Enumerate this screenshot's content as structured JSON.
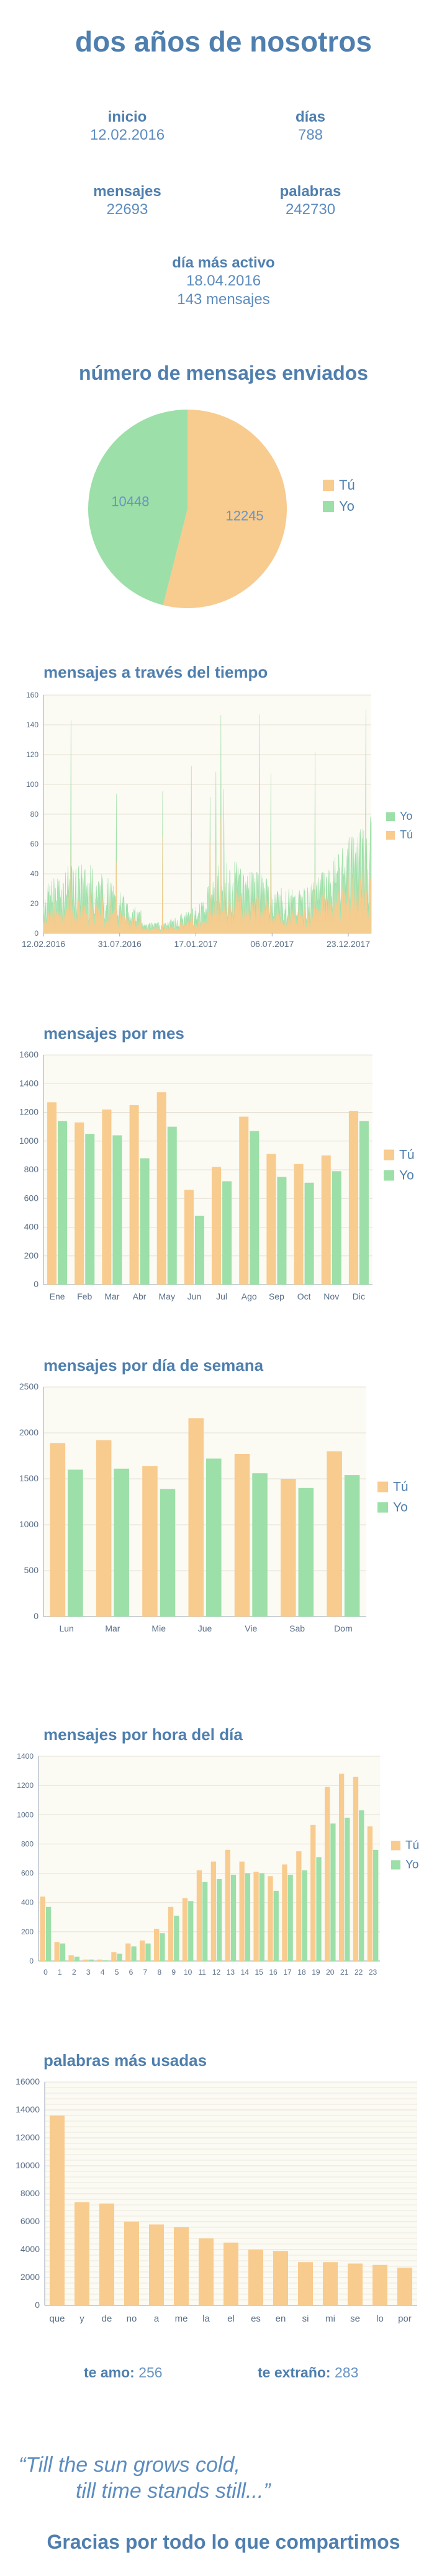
{
  "header": {
    "title": "dos años de nosotros"
  },
  "stats": {
    "inicio": {
      "label": "inicio",
      "value": "12.02.2016"
    },
    "dias": {
      "label": "días",
      "value": "788"
    },
    "mensajes": {
      "label": "mensajes",
      "value": "22693"
    },
    "palabras": {
      "label": "palabras",
      "value": "242730"
    },
    "dia_activo": {
      "label": "día más activo",
      "date": "18.04.2016",
      "count": "143 mensajes"
    }
  },
  "colors": {
    "tu": "#f8cb8e",
    "yo": "#9cdfa8",
    "title": "#4f7fae",
    "plot_bg": "#fbfaf3"
  },
  "chart_data": [
    {
      "type": "pie",
      "title": "número de mensajes enviados",
      "labels": [
        "Tú",
        "Yo"
      ],
      "values": [
        12245,
        10448
      ],
      "legend": "right"
    },
    {
      "type": "area",
      "title": "mensajes a través del tiempo",
      "x_tick_labels": [
        "12.02.2016",
        "31.07.2016",
        "17.01.2017",
        "06.07.2017",
        "23.12.2017"
      ],
      "y_ticks": [
        0,
        20,
        40,
        60,
        80,
        100,
        120,
        140,
        160
      ],
      "ylim": [
        0,
        160
      ],
      "series": [
        {
          "name": "Yo",
          "color": "#9cdfa8"
        },
        {
          "name": "Tú",
          "color": "#f8cb8e"
        }
      ],
      "legend": "right"
    },
    {
      "type": "bar",
      "title": "mensajes por mes",
      "categories": [
        "Ene",
        "Feb",
        "Mar",
        "Abr",
        "May",
        "Jun",
        "Jul",
        "Ago",
        "Sep",
        "Oct",
        "Nov",
        "Dic"
      ],
      "series": [
        {
          "name": "Tú",
          "values": [
            1270,
            1130,
            1220,
            1250,
            1340,
            660,
            820,
            1170,
            910,
            840,
            900,
            1210
          ]
        },
        {
          "name": "Yo",
          "values": [
            1140,
            1050,
            1040,
            880,
            1100,
            480,
            720,
            1070,
            750,
            710,
            790,
            1140
          ]
        }
      ],
      "ylim": [
        0,
        1600
      ],
      "y_ticks": [
        0,
        200,
        400,
        600,
        800,
        1000,
        1200,
        1400,
        1600
      ],
      "legend": "right"
    },
    {
      "type": "bar",
      "title": "mensajes por día de semana",
      "categories": [
        "Lun",
        "Mar",
        "Mie",
        "Jue",
        "Vie",
        "Sab",
        "Dom"
      ],
      "series": [
        {
          "name": "Tú",
          "values": [
            1890,
            1920,
            1640,
            2160,
            1770,
            1500,
            1800
          ]
        },
        {
          "name": "Yo",
          "values": [
            1600,
            1610,
            1390,
            1720,
            1560,
            1400,
            1540
          ]
        }
      ],
      "ylim": [
        0,
        2500
      ],
      "y_ticks": [
        0,
        500,
        1000,
        1500,
        2000,
        2500
      ],
      "legend": "right"
    },
    {
      "type": "bar",
      "title": "mensajes por hora del día",
      "categories": [
        "0",
        "1",
        "2",
        "3",
        "4",
        "5",
        "6",
        "7",
        "8",
        "9",
        "10",
        "11",
        "12",
        "13",
        "14",
        "15",
        "16",
        "17",
        "18",
        "19",
        "20",
        "21",
        "22",
        "23"
      ],
      "series": [
        {
          "name": "Tú",
          "values": [
            440,
            130,
            40,
            10,
            10,
            60,
            120,
            140,
            220,
            370,
            430,
            620,
            680,
            760,
            680,
            610,
            580,
            660,
            750,
            930,
            1190,
            1280,
            1260,
            920
          ]
        },
        {
          "name": "Yo",
          "values": [
            370,
            120,
            30,
            10,
            5,
            50,
            100,
            120,
            190,
            310,
            410,
            540,
            560,
            590,
            600,
            600,
            480,
            590,
            620,
            710,
            940,
            980,
            1030,
            760
          ]
        }
      ],
      "ylim": [
        0,
        1400
      ],
      "y_ticks": [
        0,
        200,
        400,
        600,
        800,
        1000,
        1200,
        1400
      ],
      "legend": "right"
    },
    {
      "type": "bar",
      "title": "palabras más usadas",
      "categories": [
        "que",
        "y",
        "de",
        "no",
        "a",
        "me",
        "la",
        "el",
        "es",
        "en",
        "si",
        "mi",
        "se",
        "lo",
        "por"
      ],
      "values": [
        13600,
        7400,
        7300,
        6000,
        5800,
        5600,
        4800,
        4500,
        4000,
        3900,
        3100,
        3100,
        3000,
        2900,
        2700
      ],
      "ylim": [
        0,
        16000
      ],
      "y_ticks": [
        0,
        2000,
        4000,
        6000,
        8000,
        10000,
        12000,
        14000,
        16000
      ]
    }
  ],
  "keywords": {
    "te_amo": {
      "label": "te amo:",
      "value": "256"
    },
    "te_extrano": {
      "label": "te extraño:",
      "value": "283"
    }
  },
  "footer": {
    "quote_line1": "“Till the sun grows cold,",
    "quote_line2": "till time stands still...”",
    "thanks": "Gracias por todo lo que compartimos"
  }
}
